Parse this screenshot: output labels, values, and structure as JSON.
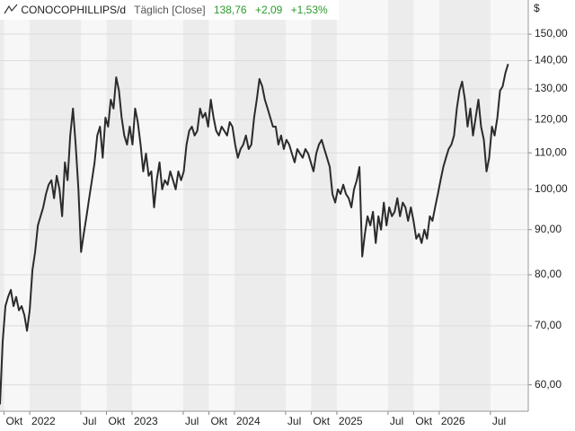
{
  "chart_data": {
    "type": "line",
    "title": "CONOCOPHILLIPS/d",
    "subtitle": "Täglich [Close]",
    "last_price": "138,76",
    "change": "+2,09",
    "change_percent": "+1,53%",
    "y_unit": "$",
    "log_scale": true,
    "grid": true,
    "xlim": [
      2021.71,
      2026.87
    ],
    "ylim": [
      56,
      164
    ],
    "xticks": [
      {
        "value": 2021.75,
        "label": "Okt"
      },
      2022,
      {
        "value": 2022.5,
        "label": "Jul"
      },
      {
        "value": 2022.75,
        "label": "Okt"
      },
      2023,
      {
        "value": 2023.5,
        "label": "Jul"
      },
      {
        "value": 2023.75,
        "label": "Okt"
      },
      2024,
      {
        "value": 2024.5,
        "label": "Jul"
      },
      {
        "value": 2024.75,
        "label": "Okt"
      },
      2025,
      {
        "value": 2025.5,
        "label": "Jul"
      },
      {
        "value": 2025.75,
        "label": "Okt"
      },
      2026,
      {
        "value": 2026.5,
        "label": "Jul"
      }
    ],
    "yticks": [
      {
        "value": 60,
        "label": "60,00"
      },
      {
        "value": 70,
        "label": "70,00"
      },
      {
        "value": 80,
        "label": "80,00"
      },
      {
        "value": 90,
        "label": "90,00"
      },
      {
        "value": 100,
        "label": "100,00"
      },
      {
        "value": 110,
        "label": "110,00"
      },
      {
        "value": 120,
        "label": "120,00"
      },
      {
        "value": 130,
        "label": "130,00"
      },
      {
        "value": 140,
        "label": "140,00"
      },
      {
        "value": 150,
        "label": "150,00"
      }
    ],
    "series": [
      {
        "name": "CONOCOPHILLIPS",
        "color": "#2b2b2b",
        "x": [
          2021.71,
          2021.736,
          2021.763,
          2021.789,
          2021.816,
          2021.842,
          2021.868,
          2021.895,
          2021.921,
          2021.948,
          2021.974,
          2022.0,
          2022.027,
          2022.053,
          2022.08,
          2022.106,
          2022.132,
          2022.159,
          2022.185,
          2022.212,
          2022.238,
          2022.264,
          2022.291,
          2022.317,
          2022.344,
          2022.37,
          2022.396,
          2022.423,
          2022.449,
          2022.476,
          2022.502,
          2022.528,
          2022.555,
          2022.581,
          2022.608,
          2022.634,
          2022.66,
          2022.687,
          2022.713,
          2022.74,
          2022.766,
          2022.792,
          2022.819,
          2022.845,
          2022.872,
          2022.898,
          2022.924,
          2022.951,
          2022.977,
          2023.004,
          2023.03,
          2023.056,
          2023.083,
          2023.109,
          2023.136,
          2023.162,
          2023.188,
          2023.215,
          2023.241,
          2023.268,
          2023.294,
          2023.32,
          2023.347,
          2023.373,
          2023.4,
          2023.426,
          2023.452,
          2023.479,
          2023.505,
          2023.532,
          2023.558,
          2023.584,
          2023.611,
          2023.637,
          2023.664,
          2023.69,
          2023.716,
          2023.743,
          2023.769,
          2023.796,
          2023.822,
          2023.848,
          2023.875,
          2023.901,
          2023.928,
          2023.954,
          2023.98,
          2024.007,
          2024.033,
          2024.06,
          2024.086,
          2024.112,
          2024.139,
          2024.165,
          2024.192,
          2024.218,
          2024.244,
          2024.271,
          2024.297,
          2024.324,
          2024.35,
          2024.376,
          2024.403,
          2024.429,
          2024.456,
          2024.482,
          2024.508,
          2024.535,
          2024.561,
          2024.588,
          2024.614,
          2024.64,
          2024.667,
          2024.693,
          2024.72,
          2024.746,
          2024.772,
          2024.799,
          2024.825,
          2024.852,
          2024.878,
          2024.904,
          2024.931,
          2024.957,
          2024.984,
          2025.01,
          2025.036,
          2025.063,
          2025.089,
          2025.116,
          2025.142,
          2025.168,
          2025.195,
          2025.221,
          2025.248,
          2025.274,
          2025.3,
          2025.327,
          2025.353,
          2025.38,
          2025.406,
          2025.432,
          2025.459,
          2025.485,
          2025.512,
          2025.538,
          2025.564,
          2025.591,
          2025.617,
          2025.644,
          2025.67,
          2025.696,
          2025.723,
          2025.749,
          2025.776,
          2025.802,
          2025.828,
          2025.855,
          2025.881,
          2025.908,
          2025.934,
          2025.96,
          2025.987,
          2026.013,
          2026.04,
          2026.066,
          2026.092,
          2026.119,
          2026.145,
          2026.172,
          2026.198,
          2026.224,
          2026.251,
          2026.277,
          2026.304,
          2026.33,
          2026.356,
          2026.383,
          2026.409,
          2026.436,
          2026.462,
          2026.488,
          2026.515,
          2026.541,
          2026.568,
          2026.594,
          2026.62,
          2026.647,
          2026.673
        ],
        "values": [
          57.0,
          67.1,
          73.7,
          75.5,
          76.9,
          73.7,
          75.5,
          72.9,
          73.7,
          72.0,
          69.1,
          72.9,
          81.0,
          84.9,
          91.0,
          93.2,
          95.4,
          98.8,
          101.2,
          102.4,
          97.7,
          103.6,
          100.0,
          93.2,
          107.3,
          102.4,
          115.1,
          123.5,
          112.4,
          100.0,
          84.9,
          89.0,
          93.2,
          97.7,
          102.4,
          107.3,
          115.1,
          117.8,
          108.6,
          120.6,
          117.8,
          126.4,
          123.5,
          134.0,
          129.4,
          120.6,
          115.1,
          112.4,
          117.8,
          112.4,
          123.5,
          119.2,
          112.4,
          104.8,
          109.8,
          103.6,
          104.8,
          95.4,
          102.4,
          107.3,
          100.0,
          102.4,
          101.2,
          104.8,
          102.4,
          100.0,
          104.8,
          102.4,
          104.8,
          112.4,
          116.5,
          117.8,
          115.1,
          116.5,
          123.5,
          120.6,
          122.1,
          117.8,
          126.4,
          120.6,
          116.5,
          115.1,
          117.8,
          116.5,
          115.1,
          119.2,
          117.8,
          112.4,
          108.6,
          111.1,
          112.4,
          115.1,
          111.1,
          112.4,
          120.6,
          126.4,
          133.4,
          130.9,
          126.4,
          123.5,
          120.6,
          117.8,
          117.8,
          112.4,
          115.1,
          111.1,
          113.8,
          112.4,
          109.8,
          107.3,
          111.1,
          109.8,
          108.6,
          111.1,
          109.8,
          107.3,
          104.8,
          109.8,
          112.4,
          113.8,
          111.1,
          108.6,
          106.0,
          98.8,
          96.6,
          100.0,
          98.8,
          101.2,
          98.8,
          97.7,
          95.4,
          100.0,
          102.4,
          106.0,
          83.9,
          89.0,
          93.2,
          91.0,
          94.3,
          86.9,
          93.2,
          90.0,
          96.6,
          91.0,
          95.4,
          93.2,
          94.3,
          97.7,
          93.2,
          96.6,
          95.4,
          92.1,
          95.4,
          92.1,
          87.9,
          89.0,
          86.9,
          90.0,
          87.9,
          93.2,
          92.1,
          95.4,
          98.8,
          102.4,
          106.0,
          108.6,
          111.1,
          112.4,
          115.1,
          123.5,
          129.4,
          132.5,
          126.4,
          117.8,
          123.5,
          115.1,
          120.6,
          126.4,
          117.8,
          113.8,
          104.8,
          108.6,
          117.8,
          115.1,
          120.6,
          129.4,
          130.9,
          135.6,
          138.76
        ]
      }
    ]
  }
}
